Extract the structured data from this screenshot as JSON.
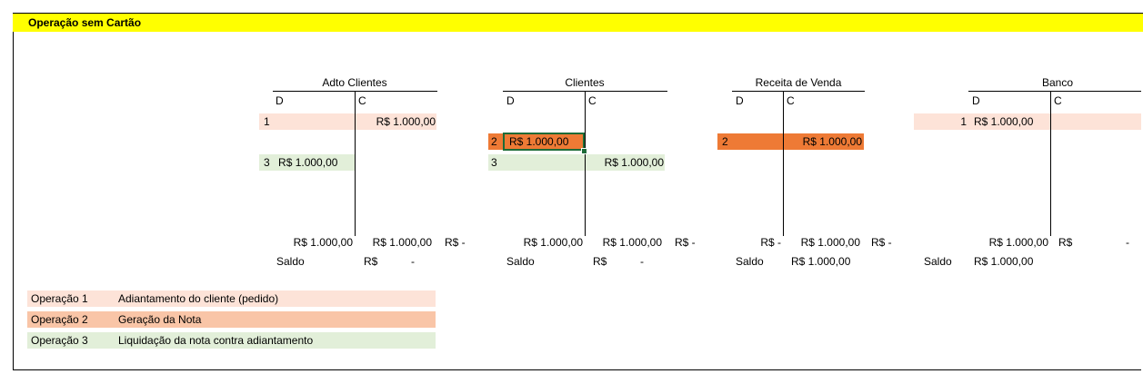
{
  "sheet": {
    "title": "Operação sem Cartão"
  },
  "accounts": {
    "adto": {
      "name": "Adto Clientes",
      "debit_head": "D",
      "credit_head": "C",
      "row1_num": "1",
      "row1_credit": "R$ 1.000,00",
      "row3_num": "3",
      "row3_debit": "R$ 1.000,00",
      "total_debit": "R$ 1.000,00",
      "total_credit": "R$ 1.000,00",
      "diff": "R$ -",
      "saldo_label": "Saldo",
      "saldo_currency": "R$",
      "saldo_value": "-"
    },
    "clientes": {
      "name": "Clientes",
      "debit_head": "D",
      "credit_head": "C",
      "row2_num": "2",
      "row2_debit": "R$ 1.000,00",
      "row3_num": "3",
      "row3_credit": "R$ 1.000,00",
      "total_debit": "R$ 1.000,00",
      "total_credit": "R$ 1.000,00",
      "diff": "R$ -",
      "saldo_label": "Saldo",
      "saldo_currency": "R$",
      "saldo_value": "-"
    },
    "receita": {
      "name": "Receita de Venda",
      "debit_head": "D",
      "credit_head": "C",
      "row2_num": "2",
      "row2_credit": "R$ 1.000,00",
      "total_debit": "R$ -",
      "total_credit": "R$ 1.000,00",
      "diff": "R$ -",
      "saldo_label": "Saldo",
      "saldo_value": "R$ 1.000,00"
    },
    "banco": {
      "name": "Banco",
      "debit_head": "D",
      "credit_head": "C",
      "row1_num": "1",
      "row1_debit": "R$ 1.000,00",
      "total_debit": "R$ 1.000,00",
      "total_credit_currency": "R$",
      "total_credit_value": "-",
      "saldo_label": "Saldo",
      "saldo_value": "R$ 1.000,00"
    }
  },
  "legend": [
    {
      "op": "Operação 1",
      "desc": "Adiantamento do cliente (pedido)",
      "color": "#fde3d8"
    },
    {
      "op": "Operação 2",
      "desc": "Geração da Nota",
      "color": "#f9c5a7"
    },
    {
      "op": "Operação 3",
      "desc": "Liquidação da nota contra adiantamento",
      "color": "#e2efd9"
    }
  ],
  "colors": {
    "title_bar": "#ffff00",
    "op1": "#fde3d8",
    "op2_cell": "#ee7a35",
    "op3": "#e2efd9",
    "selection": "#1e6b38"
  }
}
